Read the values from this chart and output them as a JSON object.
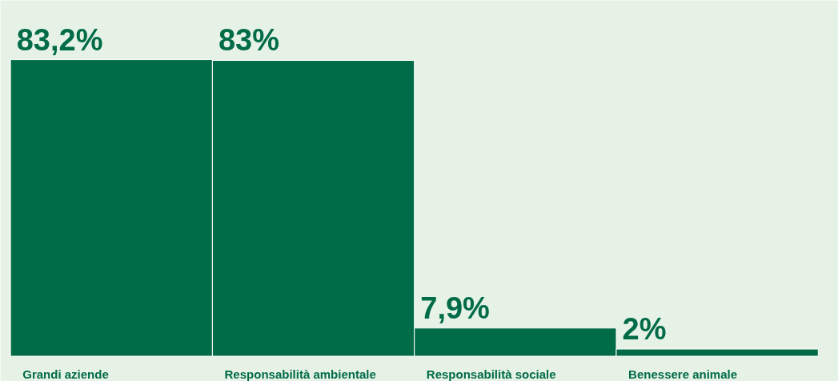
{
  "chart_data": {
    "type": "bar",
    "categories": [
      "Grandi aziende",
      "Responsabilità ambientale",
      "Responsabilità sociale",
      "Benessere animale"
    ],
    "values": [
      83.2,
      83,
      7.9,
      2
    ],
    "value_labels": [
      "83,2%",
      "83%",
      "7,9%",
      "2%"
    ],
    "color": "#006b47"
  }
}
